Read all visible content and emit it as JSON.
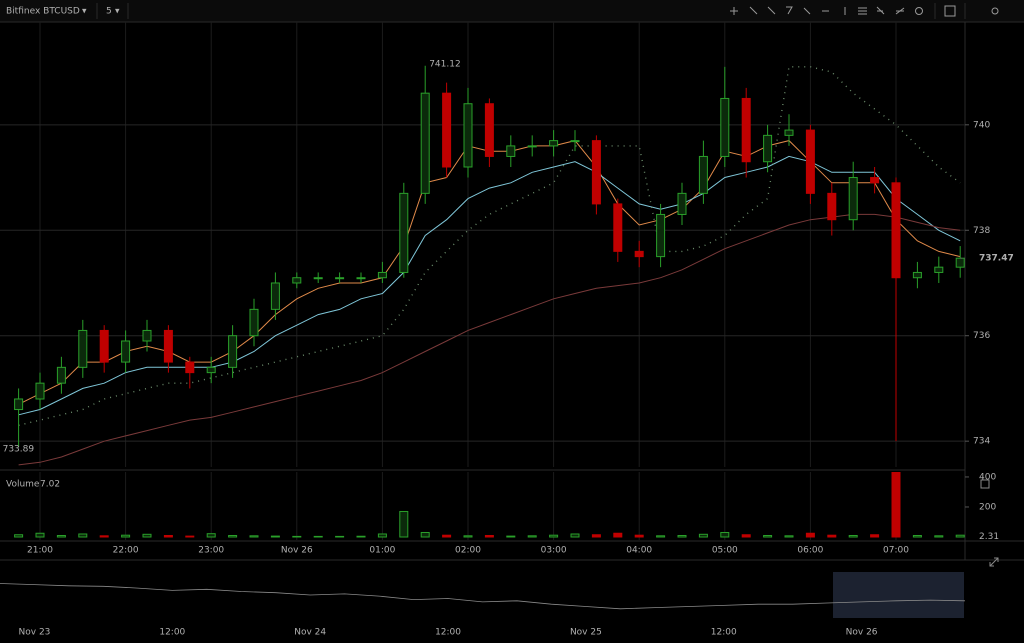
{
  "chart_data": {
    "type": "candlestick",
    "title": "Bitfinex BTCUSD",
    "interval": "5",
    "categories": [
      null,
      "21:00",
      null,
      null,
      null,
      "22:00",
      null,
      null,
      null,
      "23:00",
      null,
      null,
      null,
      "Nov 26",
      null,
      null,
      null,
      "01:00",
      null,
      null,
      null,
      "02:00",
      null,
      null,
      null,
      "03:00",
      null,
      null,
      null,
      "04:00",
      null,
      null,
      null,
      "05:00",
      null,
      null,
      null,
      "06:00",
      null,
      null,
      null,
      "07:00",
      null,
      null,
      null
    ],
    "open": [
      734.6,
      734.8,
      735.1,
      735.4,
      736.1,
      735.5,
      735.9,
      736.1,
      735.5,
      735.3,
      735.4,
      736.0,
      736.5,
      737.0,
      737.1,
      737.1,
      737.1,
      737.1,
      737.2,
      738.7,
      740.6,
      739.2,
      740.4,
      739.4,
      739.6,
      739.6,
      739.7,
      739.7,
      738.5,
      737.6,
      737.5,
      738.3,
      738.7,
      739.4,
      740.5,
      739.3,
      739.8,
      739.9,
      738.7,
      738.2,
      739.0,
      738.9,
      737.1,
      737.2,
      737.3
    ],
    "high": [
      735.0,
      735.3,
      735.6,
      736.3,
      736.2,
      736.1,
      736.3,
      736.2,
      735.6,
      735.6,
      736.2,
      736.7,
      737.2,
      737.2,
      737.2,
      737.2,
      737.2,
      737.4,
      738.9,
      741.12,
      740.8,
      740.7,
      740.5,
      739.8,
      739.8,
      739.9,
      739.9,
      739.8,
      738.6,
      737.8,
      738.5,
      738.9,
      739.7,
      741.1,
      740.7,
      740.0,
      740.2,
      740.0,
      738.9,
      739.3,
      739.2,
      739.0,
      737.4,
      737.5,
      737.7
    ],
    "low": [
      733.89,
      734.6,
      734.9,
      735.2,
      735.3,
      735.3,
      735.7,
      735.3,
      735.0,
      735.1,
      735.2,
      735.8,
      736.3,
      736.9,
      737.0,
      737.0,
      737.0,
      737.0,
      737.1,
      738.5,
      739.0,
      739.0,
      739.2,
      739.2,
      739.4,
      739.4,
      739.5,
      738.3,
      737.4,
      737.3,
      737.3,
      738.1,
      738.5,
      739.2,
      739.0,
      739.1,
      739.6,
      738.5,
      737.9,
      738.0,
      738.7,
      734.0,
      736.9,
      737.0,
      737.1
    ],
    "close": [
      734.8,
      735.1,
      735.4,
      736.1,
      735.5,
      735.9,
      736.1,
      735.5,
      735.3,
      735.4,
      736.0,
      736.5,
      737.0,
      737.1,
      737.1,
      737.1,
      737.1,
      737.2,
      738.7,
      740.6,
      739.2,
      740.4,
      739.4,
      739.6,
      739.6,
      739.7,
      739.7,
      738.5,
      737.6,
      737.5,
      738.3,
      738.7,
      739.4,
      740.5,
      739.3,
      739.8,
      739.9,
      738.7,
      738.2,
      739.0,
      738.9,
      737.1,
      737.2,
      737.3,
      737.47
    ],
    "up_color": "#2aa02a",
    "down_color": "#c00000",
    "ylim": [
      733.51,
      741.95
    ],
    "yticks": [
      734,
      736,
      738,
      740
    ],
    "grid": true,
    "indicators": [
      {
        "color": "#e08a4a",
        "style": "solid",
        "values": [
          734.7,
          734.9,
          735.1,
          735.5,
          735.5,
          735.7,
          735.8,
          735.7,
          735.5,
          735.5,
          735.7,
          736.0,
          736.4,
          736.7,
          736.9,
          737.0,
          737.0,
          737.1,
          737.7,
          738.9,
          739.0,
          739.6,
          739.5,
          739.5,
          739.6,
          739.6,
          739.7,
          739.2,
          738.5,
          738.1,
          738.2,
          738.4,
          738.8,
          739.5,
          739.4,
          739.6,
          739.7,
          739.3,
          738.9,
          738.9,
          738.9,
          738.2,
          737.8,
          737.6,
          737.5
        ]
      },
      {
        "color": "#7fc6d8",
        "style": "solid",
        "values": [
          734.5,
          734.6,
          734.8,
          735.0,
          735.1,
          735.3,
          735.4,
          735.4,
          735.4,
          735.4,
          735.5,
          735.7,
          736.0,
          736.2,
          736.4,
          736.5,
          736.7,
          736.8,
          737.2,
          737.9,
          738.2,
          738.6,
          738.8,
          738.9,
          739.1,
          739.2,
          739.3,
          739.1,
          738.8,
          738.5,
          738.4,
          738.5,
          738.7,
          739.0,
          739.1,
          739.2,
          739.4,
          739.3,
          739.1,
          739.1,
          739.1,
          738.6,
          738.3,
          738.0,
          737.8
        ]
      },
      {
        "color": "#7a3a3a",
        "style": "solid",
        "values": [
          733.55,
          733.6,
          733.7,
          733.85,
          734.0,
          734.1,
          734.2,
          734.3,
          734.4,
          734.45,
          734.55,
          734.65,
          734.75,
          734.85,
          734.95,
          735.05,
          735.15,
          735.3,
          735.5,
          735.7,
          735.9,
          736.1,
          736.25,
          736.4,
          736.55,
          736.7,
          736.8,
          736.9,
          736.95,
          737.0,
          737.1,
          737.25,
          737.45,
          737.65,
          737.8,
          737.95,
          738.1,
          738.2,
          738.25,
          738.3,
          738.3,
          738.25,
          738.15,
          738.05,
          738.0
        ]
      },
      {
        "color": "#6a8a6a",
        "style": "dotted",
        "values": [
          734.3,
          734.4,
          734.5,
          734.6,
          734.8,
          734.9,
          735.0,
          735.1,
          735.1,
          735.2,
          735.3,
          735.4,
          735.5,
          735.6,
          735.7,
          735.8,
          735.9,
          736.0,
          736.5,
          737.2,
          737.6,
          738.0,
          738.3,
          738.5,
          738.7,
          738.9,
          739.6,
          739.6,
          739.6,
          739.6,
          737.6,
          737.6,
          737.7,
          737.9,
          738.3,
          738.6,
          741.1,
          741.1,
          741.0,
          740.6,
          740.3,
          740.0,
          739.6,
          739.2,
          738.9
        ]
      }
    ],
    "volume": {
      "label": "Volume",
      "current": 7.02,
      "marker": 2.31,
      "ylim": [
        -20,
        433
      ],
      "yticks": [
        200,
        400
      ],
      "values": [
        15,
        25,
        10,
        20,
        8,
        12,
        18,
        10,
        6,
        22,
        10,
        8,
        6,
        4,
        4,
        4,
        5,
        20,
        170,
        30,
        12,
        8,
        10,
        6,
        8,
        12,
        20,
        15,
        25,
        12,
        8,
        10,
        18,
        30,
        15,
        10,
        8,
        25,
        12,
        10,
        15,
        450,
        10,
        8,
        12
      ]
    },
    "navigator": {
      "color": "#8a8a8a",
      "ylim": [
        730,
        750
      ],
      "categories": [
        null,
        "Nov 23",
        null,
        null,
        null,
        "12:00",
        null,
        null,
        null,
        "Nov 24",
        null,
        null,
        null,
        "12:00",
        null,
        null,
        null,
        "Nov 25",
        null,
        null,
        null,
        "12:00",
        null,
        null,
        null,
        "Nov 26",
        null,
        null,
        null
      ],
      "values": [
        745,
        744.5,
        744,
        743.8,
        743,
        742,
        742.5,
        741.5,
        741,
        740,
        740.5,
        739.5,
        738,
        738.5,
        737,
        737.5,
        736,
        735,
        734,
        734.5,
        735,
        735.5,
        736,
        736,
        736.5,
        737,
        737.5,
        737.8,
        737.5
      ]
    }
  }
}
